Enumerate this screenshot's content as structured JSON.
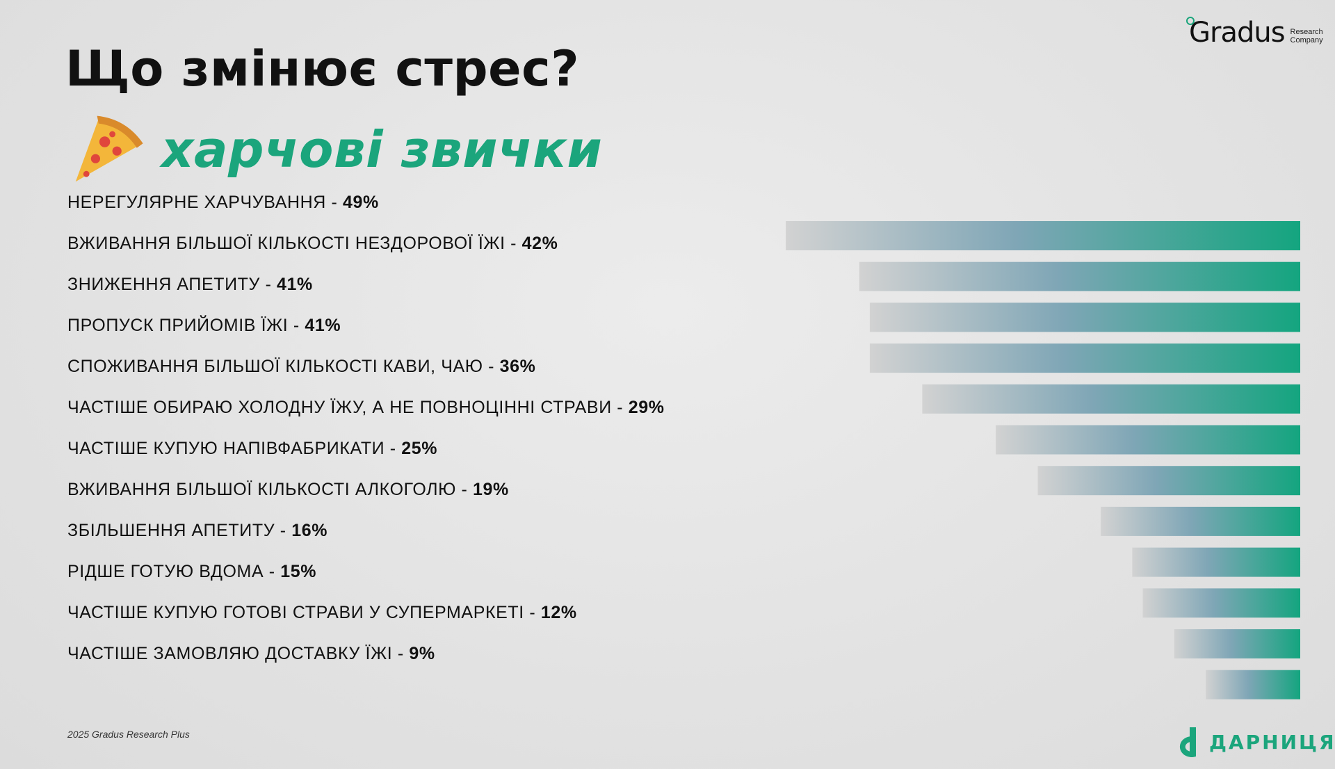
{
  "header": {
    "title": "Що змінює стрес?",
    "subtitle": "харчові звички",
    "subtitle_icon": "pizza-icon"
  },
  "brand": {
    "name": "Gradus",
    "sub_line1": "Research",
    "sub_line2": "Company"
  },
  "footer": {
    "source": "2025 Gradus Research Plus",
    "partner": "ДАРНИЦЯ"
  },
  "colors": {
    "accent": "#1ba57c",
    "bar_start": "#d0d0d0",
    "bar_mid": "#7fa7b7",
    "bar_end": "#14a57f"
  },
  "chart_data": {
    "type": "bar",
    "orientation": "horizontal",
    "categories": [
      "НЕРЕГУЛЯРНЕ ХАРЧУВАННЯ",
      "ВЖИВАННЯ БІЛЬШОЇ КІЛЬКОСТІ НЕЗДОРОВОЇ ЇЖІ",
      "ЗНИЖЕННЯ АПЕТИТУ",
      "ПРОПУСК ПРИЙОМІВ ЇЖІ",
      "СПОЖИВАННЯ БІЛЬШОЇ КІЛЬКОСТІ КАВИ, ЧАЮ",
      "ЧАСТІШЕ ОБИРАЮ ХОЛОДНУ ЇЖУ, А НЕ ПОВНОЦІННІ СТРАВИ",
      "ЧАСТІШЕ КУПУЮ НАПІВФАБРИКАТИ",
      "ВЖИВАННЯ БІЛЬШОЇ КІЛЬКОСТІ АЛКОГОЛЮ",
      "ЗБІЛЬШЕННЯ АПЕТИТУ",
      "РІДШЕ ГОТУЮ ВДОМА",
      "ЧАСТІШЕ КУПУЮ ГОТОВІ СТРАВИ У СУПЕРМАРКЕТІ",
      "ЧАСТІШЕ ЗАМОВЛЯЮ ДОСТАВКУ ЇЖІ"
    ],
    "value_labels": [
      "49%",
      "42%",
      "41%",
      "41%",
      "36%",
      "29%",
      "25%",
      "19%",
      "16%",
      "15%",
      "12%",
      "9%"
    ],
    "values": [
      49,
      42,
      41,
      41,
      36,
      29,
      25,
      19,
      16,
      15,
      12,
      9
    ],
    "unit": "%",
    "legend": "none",
    "grid": false
  }
}
